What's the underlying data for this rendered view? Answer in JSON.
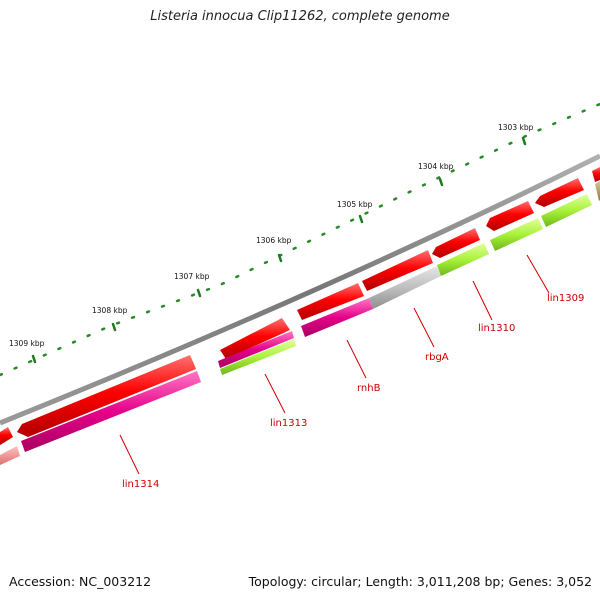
{
  "title": "Listeria innocua Clip11262, complete genome",
  "accession": "Accession: NC_003212",
  "summary": "Topology: circular; Length: 3,011,208 bp; Genes: 3,052",
  "scale_labels": [
    "1303 kbp",
    "1304 kbp",
    "1305 kbp",
    "1306 kbp",
    "1307 kbp",
    "1308 kbp",
    "1309 kbp"
  ],
  "gene_labels": [
    "lin1309",
    "lin1310",
    "rbgA",
    "rnhB",
    "lin1313",
    "lin1314"
  ],
  "colors": {
    "backbone": "#808080",
    "cds": "#ee0000",
    "magenta": "#e6007e",
    "lime": "#b3ff3d",
    "grey": "#bdbdbd",
    "tick": "#1f7a1f",
    "label": "#cc0000"
  }
}
